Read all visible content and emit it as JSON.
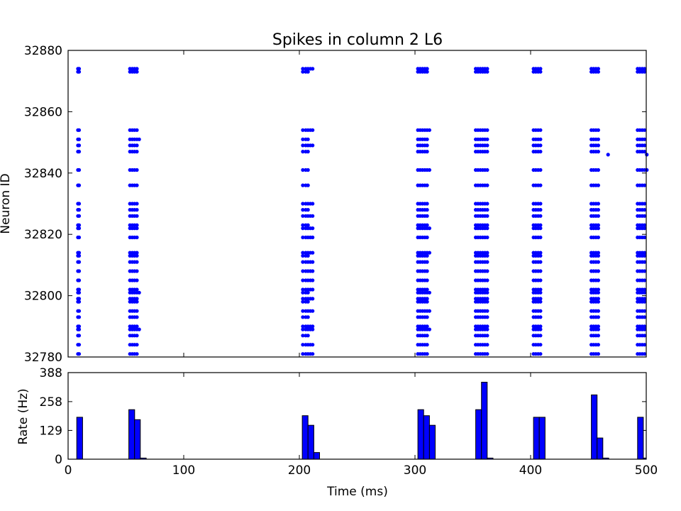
{
  "chart_data": [
    {
      "type": "scatter",
      "title": "Spikes in column 2 L6",
      "xlabel": "",
      "ylabel": "Neuron ID",
      "xlim": [
        0,
        500
      ],
      "ylim": [
        32780,
        32880
      ],
      "yticks": [
        "32780",
        "32800",
        "32820",
        "32840",
        "32860",
        "32880"
      ],
      "grid": false,
      "marker_color": "#0000ff",
      "neuron_ids": [
        32781,
        32784,
        32787,
        32789,
        32790,
        32793,
        32795,
        32798,
        32799,
        32801,
        32802,
        32805,
        32808,
        32811,
        32813,
        32814,
        32819,
        32822,
        32823,
        32826,
        32828,
        32830,
        32836,
        32841,
        32847,
        32849,
        32851,
        32854,
        32873,
        32874
      ],
      "spike_bursts": [
        {
          "times": [
            8.5,
            9.5
          ],
          "ids": "all"
        },
        {
          "times": [
            53.5,
            55.5,
            57.5,
            59.5
          ],
          "ids": "all"
        },
        {
          "times": [
            61.5
          ],
          "ids": [
            32789,
            32801,
            32851
          ]
        },
        {
          "times": [
            203,
            205.5,
            207.5
          ],
          "ids": "all"
        },
        {
          "times": [
            209.5,
            211.5
          ],
          "ids": [
            32781,
            32784,
            32789,
            32790,
            32795,
            32799,
            32802,
            32805,
            32808,
            32811,
            32814,
            32819,
            32822,
            32826,
            32830,
            32849,
            32854,
            32874
          ]
        },
        {
          "times": [
            302.5,
            304.5,
            306.5,
            308.5,
            310.5
          ],
          "ids": "all"
        },
        {
          "times": [
            312.5
          ],
          "ids": [
            32789,
            32795,
            32801,
            32814,
            32822,
            32841,
            32854
          ]
        },
        {
          "times": [
            352.5,
            354.5,
            356.5,
            358.5,
            360.5,
            362.5
          ],
          "ids": "all"
        },
        {
          "times": [
            402.5,
            404.5,
            406.5,
            408.5
          ],
          "ids": "all"
        },
        {
          "times": [
            452.5,
            454.5,
            456.5,
            458.5
          ],
          "ids": "all"
        },
        {
          "times": [
            467
          ],
          "ids": [
            32846
          ]
        },
        {
          "times": [
            492.5,
            494.5,
            496.5,
            498.5
          ],
          "ids": "all"
        },
        {
          "times": [
            500.5
          ],
          "ids": [
            32841,
            32846
          ]
        }
      ]
    },
    {
      "type": "bar",
      "title": "",
      "xlabel": "Time (ms)",
      "ylabel": "Rate (Hz)",
      "xlim": [
        0,
        500
      ],
      "ylim": [
        0,
        388
      ],
      "yticks": [
        "0",
        "129",
        "258",
        "388"
      ],
      "xticks": [
        "0",
        "100",
        "200",
        "300",
        "400",
        "500"
      ],
      "bin_width_ms": 5,
      "bar_color": "#0000ff",
      "bins": [
        {
          "start": 7.5,
          "rate": 188
        },
        {
          "start": 52.5,
          "rate": 222
        },
        {
          "start": 57.5,
          "rate": 177
        },
        {
          "start": 62.5,
          "rate": 5
        },
        {
          "start": 202.5,
          "rate": 195
        },
        {
          "start": 207.5,
          "rate": 152
        },
        {
          "start": 212.5,
          "rate": 30
        },
        {
          "start": 302.5,
          "rate": 222
        },
        {
          "start": 307.5,
          "rate": 195
        },
        {
          "start": 312.5,
          "rate": 152
        },
        {
          "start": 352.5,
          "rate": 222
        },
        {
          "start": 357.5,
          "rate": 345
        },
        {
          "start": 362.5,
          "rate": 5
        },
        {
          "start": 402.5,
          "rate": 188
        },
        {
          "start": 407.5,
          "rate": 188
        },
        {
          "start": 452.5,
          "rate": 288
        },
        {
          "start": 457.5,
          "rate": 95
        },
        {
          "start": 462.5,
          "rate": 5
        },
        {
          "start": 492.5,
          "rate": 188
        },
        {
          "start": 497.5,
          "rate": 5
        }
      ]
    }
  ]
}
